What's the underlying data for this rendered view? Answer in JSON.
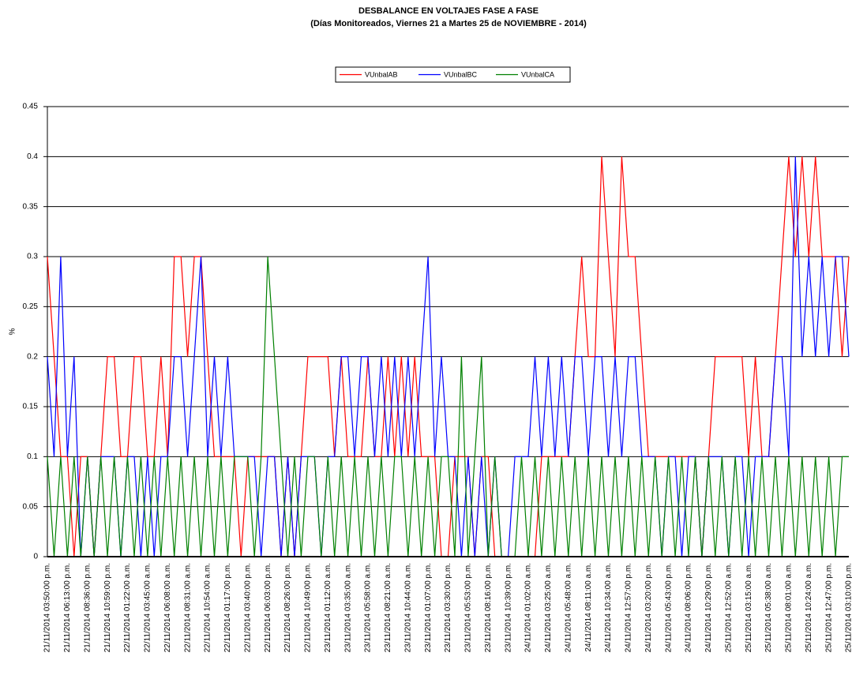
{
  "chart_data": {
    "type": "line",
    "title": "DESBALANCE  EN  VOLTAJES  FASE  A  FASE",
    "subtitle": "(Días  Monitoreados, Viernes 21 a Martes 25 de NOVIEMBRE   - 2014)",
    "y_label": "%",
    "categories": [
      "21/11/2014 03:50:00 p.m.",
      null,
      null,
      "21/11/2014 06:13:00 p.m.",
      null,
      null,
      "21/11/2014 08:36:00 p.m.",
      null,
      null,
      "21/11/2014 10:59:00 p.m.",
      null,
      null,
      "22/11/2014 01:22:00 a.m.",
      null,
      null,
      "22/11/2014 03:45:00 a.m.",
      null,
      null,
      "22/11/2014 06:08:00 a.m.",
      null,
      null,
      "22/11/2014 08:31:00 a.m.",
      null,
      null,
      "22/11/2014 10:54:00 a.m.",
      null,
      null,
      "22/11/2014 01:17:00 p.m.",
      null,
      null,
      "22/11/2014 03:40:00 p.m.",
      null,
      null,
      "22/11/2014 06:03:00 p.m.",
      null,
      null,
      "22/11/2014 08:26:00 p.m.",
      null,
      null,
      "22/11/2014 10:49:00 p.m.",
      null,
      null,
      "23/11/2014 01:12:00 a.m.",
      null,
      null,
      "23/11/2014 03:35:00 a.m.",
      null,
      null,
      "23/11/2014 05:58:00 a.m.",
      null,
      null,
      "23/11/2014 08:21:00 a.m.",
      null,
      null,
      "23/11/2014 10:44:00 a.m.",
      null,
      null,
      "23/11/2014 01:07:00 p.m.",
      null,
      null,
      "23/11/2014 03:30:00 p.m.",
      null,
      null,
      "23/11/2014 05:53:00 p.m.",
      null,
      null,
      "23/11/2014 08:16:00 p.m.",
      null,
      null,
      "23/11/2014 10:39:00 p.m.",
      null,
      null,
      "24/11/2014 01:02:00 a.m.",
      null,
      null,
      "24/11/2014 03:25:00 a.m.",
      null,
      null,
      "24/11/2014 05:48:00 a.m.",
      null,
      null,
      "24/11/2014 08:11:00 a.m.",
      null,
      null,
      "24/11/2014 10:34:00 a.m.",
      null,
      null,
      "24/11/2014 12:57:00 p.m.",
      null,
      null,
      "24/11/2014 03:20:00 p.m.",
      null,
      null,
      "24/11/2014 05:43:00 p.m.",
      null,
      null,
      "24/11/2014 08:06:00 p.m.",
      null,
      null,
      "24/11/2014 10:29:00 p.m.",
      null,
      null,
      "25/11/2014 12:52:00 a.m.",
      null,
      null,
      "25/11/2014 03:15:00 a.m.",
      null,
      null,
      "25/11/2014 05:38:00 a.m.",
      null,
      null,
      "25/11/2014 08:01:00 a.m.",
      null,
      null,
      "25/11/2014 10:24:00 a.m.",
      null,
      null,
      "25/11/2014 12:47:00 p.m.",
      null,
      null,
      "25/11/2014 03:10:00 p.m."
    ],
    "series": [
      {
        "name": "VUnbalAB",
        "color": "#ff0000",
        "values": [
          0.3,
          0.2,
          0.1,
          0.1,
          0,
          0.1,
          0.1,
          0,
          0.1,
          0.2,
          0.2,
          0.1,
          0.1,
          0.2,
          0.2,
          0.1,
          0.1,
          0.2,
          0.1,
          0.3,
          0.3,
          0.2,
          0.3,
          0.3,
          0.2,
          0.1,
          0.1,
          0.1,
          0.1,
          0,
          0.1,
          0.1,
          0.1,
          0.1,
          0.1,
          0,
          0.1,
          0,
          0.1,
          0.2,
          0.2,
          0.2,
          0.2,
          0.1,
          0.2,
          0.1,
          0.1,
          0.1,
          0.2,
          0.1,
          0.1,
          0.2,
          0.1,
          0.2,
          0.1,
          0.2,
          0.1,
          0.1,
          0.1,
          0,
          0,
          0.1,
          0.1,
          0.1,
          0,
          0.1,
          0.1,
          0,
          0,
          0,
          0,
          0,
          0,
          0,
          0.1,
          0.1,
          0.1,
          0.1,
          0.1,
          0.2,
          0.3,
          0.2,
          0.2,
          0.4,
          0.3,
          0.2,
          0.4,
          0.3,
          0.3,
          0.2,
          0.1,
          0.1,
          0.1,
          0.1,
          0.1,
          0.1,
          0.1,
          0.1,
          0,
          0.1,
          0.2,
          0.2,
          0.2,
          0.2,
          0.2,
          0.1,
          0.2,
          0.1,
          0.1,
          0.2,
          0.3,
          0.4,
          0.3,
          0.4,
          0.3,
          0.4,
          0.3,
          0.3,
          0.3,
          0.2,
          0.3
        ]
      },
      {
        "name": "VUnbalBC",
        "color": "#0000ff",
        "values": [
          0.2,
          0.1,
          0.3,
          0.1,
          0.2,
          0,
          0.1,
          0,
          0.1,
          0.1,
          0.1,
          0,
          0.1,
          0.1,
          0,
          0.1,
          0,
          0.1,
          0.1,
          0.2,
          0.2,
          0.1,
          0.2,
          0.3,
          0.1,
          0.2,
          0.1,
          0.2,
          0.1,
          0.1,
          0.1,
          0.1,
          0,
          0.1,
          0.1,
          0,
          0.1,
          0,
          0.1,
          0.1,
          0.1,
          0,
          0.1,
          0.1,
          0.2,
          0.2,
          0.1,
          0.2,
          0.2,
          0.1,
          0.2,
          0.1,
          0.2,
          0.1,
          0.2,
          0.1,
          0.2,
          0.3,
          0.1,
          0.2,
          0.1,
          0.1,
          0,
          0.1,
          0,
          0.1,
          0,
          0.1,
          0,
          0,
          0.1,
          0.1,
          0.1,
          0.2,
          0.1,
          0.2,
          0.1,
          0.2,
          0.1,
          0.2,
          0.2,
          0.1,
          0.2,
          0.2,
          0.1,
          0.2,
          0.1,
          0.2,
          0.2,
          0.1,
          0.1,
          0.1,
          0,
          0.1,
          0.1,
          0,
          0.1,
          0.1,
          0,
          0.1,
          0.1,
          0.1,
          0,
          0.1,
          0.1,
          0,
          0.1,
          0.1,
          0.1,
          0.2,
          0.2,
          0.1,
          0.4,
          0.2,
          0.3,
          0.2,
          0.3,
          0.2,
          0.3,
          0.3,
          0.2
        ]
      },
      {
        "name": "VUnbalCA",
        "color": "#008000",
        "values": [
          0.1,
          0,
          0.1,
          0,
          0.1,
          0,
          0.1,
          0,
          0.1,
          0,
          0.1,
          0,
          0.1,
          0,
          0.1,
          0,
          0.1,
          0,
          0.1,
          0,
          0.1,
          0,
          0.1,
          0,
          0.1,
          0,
          0.1,
          0,
          0.1,
          0.1,
          0.1,
          0,
          0.1,
          0.3,
          0.2,
          0.1,
          0,
          0.1,
          0,
          0.1,
          0.1,
          0,
          0.1,
          0,
          0.1,
          0,
          0.1,
          0,
          0.1,
          0,
          0.1,
          0,
          0.1,
          0.1,
          0,
          0.1,
          0,
          0.1,
          0,
          0.1,
          0.1,
          0,
          0.2,
          0,
          0.1,
          0.2,
          0,
          0.1,
          0,
          0,
          0,
          0.1,
          0,
          0.1,
          0,
          0.1,
          0,
          0.1,
          0,
          0.1,
          0,
          0.1,
          0,
          0.1,
          0,
          0.1,
          0,
          0.1,
          0,
          0.1,
          0,
          0.1,
          0,
          0.1,
          0,
          0.1,
          0,
          0.1,
          0,
          0.1,
          0,
          0.1,
          0,
          0.1,
          0,
          0.1,
          0,
          0.1,
          0,
          0.1,
          0,
          0.1,
          0,
          0.1,
          0,
          0.1,
          0,
          0.1,
          0,
          0.1,
          0.1
        ]
      }
    ],
    "ylim": [
      0,
      0.45
    ],
    "yticks": [
      0,
      0.05,
      0.1,
      0.15,
      0.2,
      0.25,
      0.3,
      0.35,
      0.4,
      0.45
    ],
    "grid": true,
    "legend": "top"
  }
}
